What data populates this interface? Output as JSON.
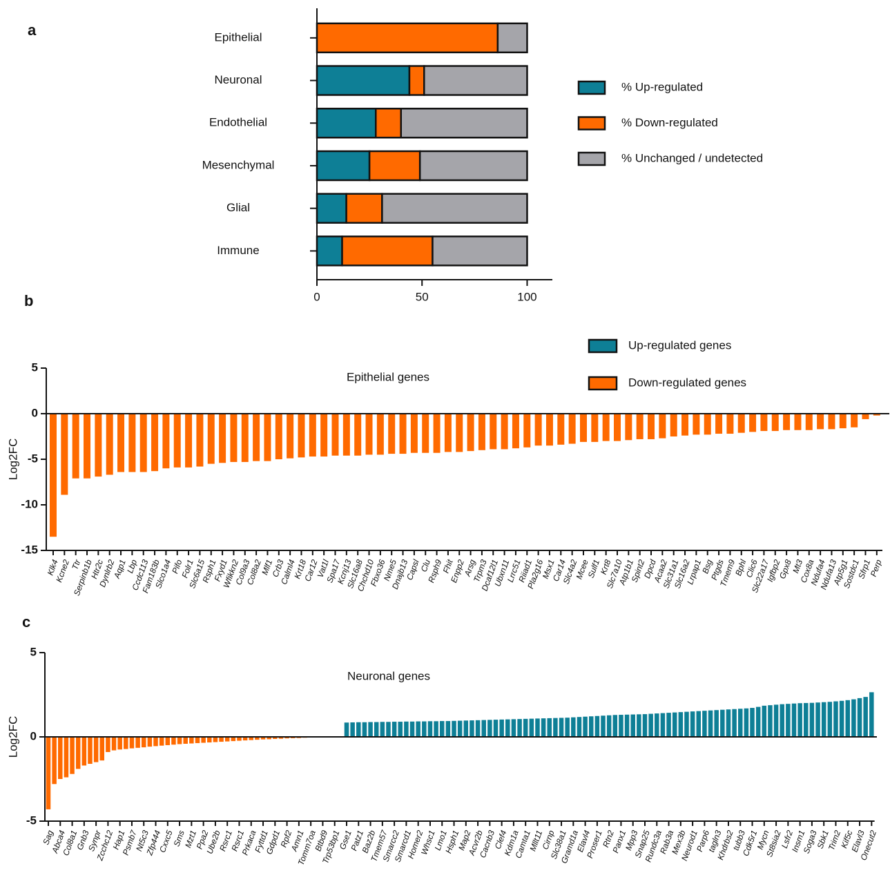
{
  "chart_data": [
    {
      "type": "stacked_barh",
      "panel_label": "a",
      "categories": [
        "Epithelial",
        "Neuronal",
        "Endothelial",
        "Mesenchymal",
        "Glial",
        "Immune"
      ],
      "series": [
        {
          "name": "% Up-regulated",
          "color": "#0e7f96",
          "values": [
            0,
            44,
            28,
            25,
            14,
            12
          ]
        },
        {
          "name": "% Down-regulated",
          "color": "#ff6a00",
          "values": [
            86,
            7,
            12,
            24,
            17,
            43
          ]
        },
        {
          "name": "% Unchanged / undetected",
          "color": "#a5a5aa",
          "values": [
            14,
            49,
            60,
            51,
            69,
            45
          ]
        }
      ],
      "xlim": [
        0,
        112
      ],
      "xticks": [
        0,
        50,
        100
      ]
    },
    {
      "type": "bar",
      "panel_label": "b",
      "title": "Epithelial genes",
      "ylabel": "Log2FC",
      "legend": [
        "Up-regulated genes",
        "Down-regulated genes"
      ],
      "pos_color": "#0e7f96",
      "neg_color": "#ff6a00",
      "categories": [
        "Klk4",
        "Kcne2",
        "Ttr",
        "Serpinb1b",
        "Htr2c",
        "Dynlrb2",
        "Aqp1",
        "Lbp",
        "Ccdc113",
        "Fam183b",
        "Slco1a4",
        "Pifo",
        "Folr1",
        "Slc6a15",
        "Rsph1",
        "Fxyd1",
        "Wfikkn2",
        "Col9a3",
        "Col8a2",
        "Mlf1",
        "Crb3",
        "Calml4",
        "Krt18",
        "Car12",
        "Vat1l",
        "Spa17",
        "Kcnj13",
        "Slc16a8",
        "Chchd10",
        "Fbxo36",
        "Nme5",
        "Dnajb13",
        "Capsl",
        "Clu",
        "Rsph9",
        "Fhit",
        "Enpp2",
        "Arsg",
        "Trpm3",
        "Dcaf12l1",
        "Ubxn11",
        "Lrrc51",
        "Riiad1",
        "Pla2g16",
        "Msx1",
        "Car14",
        "Slc4a2",
        "Mcee",
        "Sulf1",
        "Krt8",
        "Slc7a10",
        "Atp1b1",
        "Spint2",
        "Dpcd",
        "Acaa2",
        "Slc31a1",
        "Slc16a2",
        "Lrpap1",
        "Bsg",
        "Ptgds",
        "Tmem9",
        "Bphl",
        "Clic6",
        "Slc22a17",
        "Igfbp2",
        "Gpx8",
        "Mt3",
        "Cox8a",
        "Ndufa4",
        "Ndufa13",
        "Atp5g1",
        "Sostdc1",
        "Sfrp1",
        "Perp"
      ],
      "values": [
        -13.5,
        -8.9,
        -7.1,
        -7.1,
        -6.9,
        -6.7,
        -6.4,
        -6.4,
        -6.4,
        -6.3,
        -6.0,
        -5.9,
        -5.9,
        -5.8,
        -5.5,
        -5.4,
        -5.3,
        -5.3,
        -5.2,
        -5.2,
        -5.0,
        -4.9,
        -4.8,
        -4.7,
        -4.7,
        -4.6,
        -4.6,
        -4.6,
        -4.5,
        -4.5,
        -4.4,
        -4.4,
        -4.3,
        -4.3,
        -4.3,
        -4.2,
        -4.2,
        -4.1,
        -4.0,
        -3.9,
        -3.9,
        -3.8,
        -3.7,
        -3.5,
        -3.5,
        -3.4,
        -3.3,
        -3.1,
        -3.1,
        -3.0,
        -3.0,
        -2.9,
        -2.8,
        -2.8,
        -2.7,
        -2.5,
        -2.4,
        -2.3,
        -2.3,
        -2.2,
        -2.2,
        -2.1,
        -2.0,
        -1.9,
        -1.9,
        -1.8,
        -1.8,
        -1.8,
        -1.7,
        -1.7,
        -1.6,
        -1.5,
        -0.6,
        -0.2
      ],
      "ylim": [
        -15,
        5
      ],
      "yticks": [
        5,
        0,
        -5,
        -10,
        -15
      ]
    },
    {
      "type": "bar",
      "panel_label": "c",
      "title": "Neuronal genes",
      "ylabel": "Log2FC",
      "pos_color": "#0e7f96",
      "neg_color": "#ff6a00",
      "categories": [
        "Sag",
        null,
        "Abca4",
        null,
        "Col8a1",
        null,
        "Gnb3",
        null,
        "Synpr",
        null,
        "Zcchc12",
        null,
        "Hap1",
        null,
        "Psmb7",
        null,
        "Nt5c3",
        null,
        "Zfp444",
        null,
        "Cxxc5",
        null,
        "Sms",
        null,
        "Mzt1",
        null,
        "Ppa2",
        null,
        "Ube2b",
        null,
        "Rsrc1",
        null,
        "Rsrc1",
        null,
        "Prkaca",
        null,
        "Fyttd1",
        null,
        "Gdpd1",
        null,
        "Rpf2",
        null,
        "Amn1",
        null,
        "Tomm7oa",
        null,
        "Btbd9",
        null,
        "Trp53bp1",
        null,
        "Gse1",
        null,
        "Patz1",
        null,
        "Baz2b",
        null,
        "Tmem57",
        null,
        "Smarcc2",
        null,
        "Smarcd1",
        null,
        "Homer2",
        null,
        "Whsc1",
        null,
        "Lmo1",
        null,
        "Hsph1",
        null,
        "Map2",
        null,
        "Acvr2b",
        null,
        "Cacnb3",
        null,
        "Clef4",
        null,
        "Kdm1a",
        null,
        "Camta1",
        null,
        "Mllt11",
        null,
        "Cirnp",
        null,
        "Slc38a1",
        null,
        "Gramd1a",
        null,
        "Elavl4",
        null,
        "Proser1",
        null,
        "Rtn2",
        null,
        "Panx1",
        null,
        "Mpp3",
        null,
        "Snap25",
        null,
        "Rundc3a",
        null,
        "Rab3a",
        null,
        "Mex3b",
        null,
        "Neurod1",
        null,
        "Parp6",
        null,
        "tagln3",
        null,
        "Khdrbs2",
        null,
        "tubb3",
        null,
        "Cdk5r1",
        null,
        "Mycn",
        null,
        "St8sia2",
        null,
        "Lsfr2",
        null,
        "Insm1",
        null,
        "Soga3",
        null,
        "Sbk1",
        null,
        "Trim2",
        null,
        "Kif5c",
        null,
        "Elavl3",
        null,
        "Onecut2"
      ],
      "values": [
        -4.3,
        -2.8,
        -2.5,
        -2.4,
        -2.2,
        -1.9,
        -1.7,
        -1.6,
        -1.5,
        -1.4,
        -0.9,
        -0.8,
        -0.75,
        -0.72,
        -0.68,
        -0.65,
        -0.62,
        -0.58,
        -0.55,
        -0.52,
        -0.49,
        -0.46,
        -0.43,
        -0.41,
        -0.39,
        -0.37,
        -0.35,
        -0.33,
        -0.31,
        -0.29,
        -0.27,
        -0.25,
        -0.23,
        -0.21,
        -0.19,
        -0.17,
        -0.15,
        -0.14,
        -0.12,
        -0.11,
        -0.09,
        -0.08,
        -0.07,
        -0.05,
        -0.04,
        -0.03,
        0,
        0,
        0,
        0,
        0.85,
        0.86,
        0.87,
        0.87,
        0.88,
        0.88,
        0.89,
        0.89,
        0.9,
        0.9,
        0.91,
        0.91,
        0.92,
        0.92,
        0.93,
        0.93,
        0.94,
        0.94,
        0.95,
        0.96,
        0.97,
        0.98,
        0.99,
        1.0,
        1.01,
        1.02,
        1.03,
        1.04,
        1.05,
        1.06,
        1.07,
        1.08,
        1.09,
        1.1,
        1.11,
        1.12,
        1.13,
        1.14,
        1.16,
        1.18,
        1.2,
        1.22,
        1.24,
        1.26,
        1.28,
        1.3,
        1.31,
        1.32,
        1.33,
        1.34,
        1.35,
        1.37,
        1.39,
        1.41,
        1.43,
        1.45,
        1.47,
        1.49,
        1.51,
        1.53,
        1.55,
        1.57,
        1.59,
        1.61,
        1.63,
        1.65,
        1.67,
        1.69,
        1.72,
        1.78,
        1.85,
        1.88,
        1.91,
        1.94,
        1.96,
        1.98,
        2.0,
        2.01,
        2.02,
        2.04,
        2.06,
        2.08,
        2.11,
        2.14,
        2.18,
        2.23,
        2.3,
        2.37,
        2.65
      ],
      "ylim": [
        -5,
        5
      ],
      "yticks": [
        5,
        0,
        -5
      ]
    }
  ]
}
